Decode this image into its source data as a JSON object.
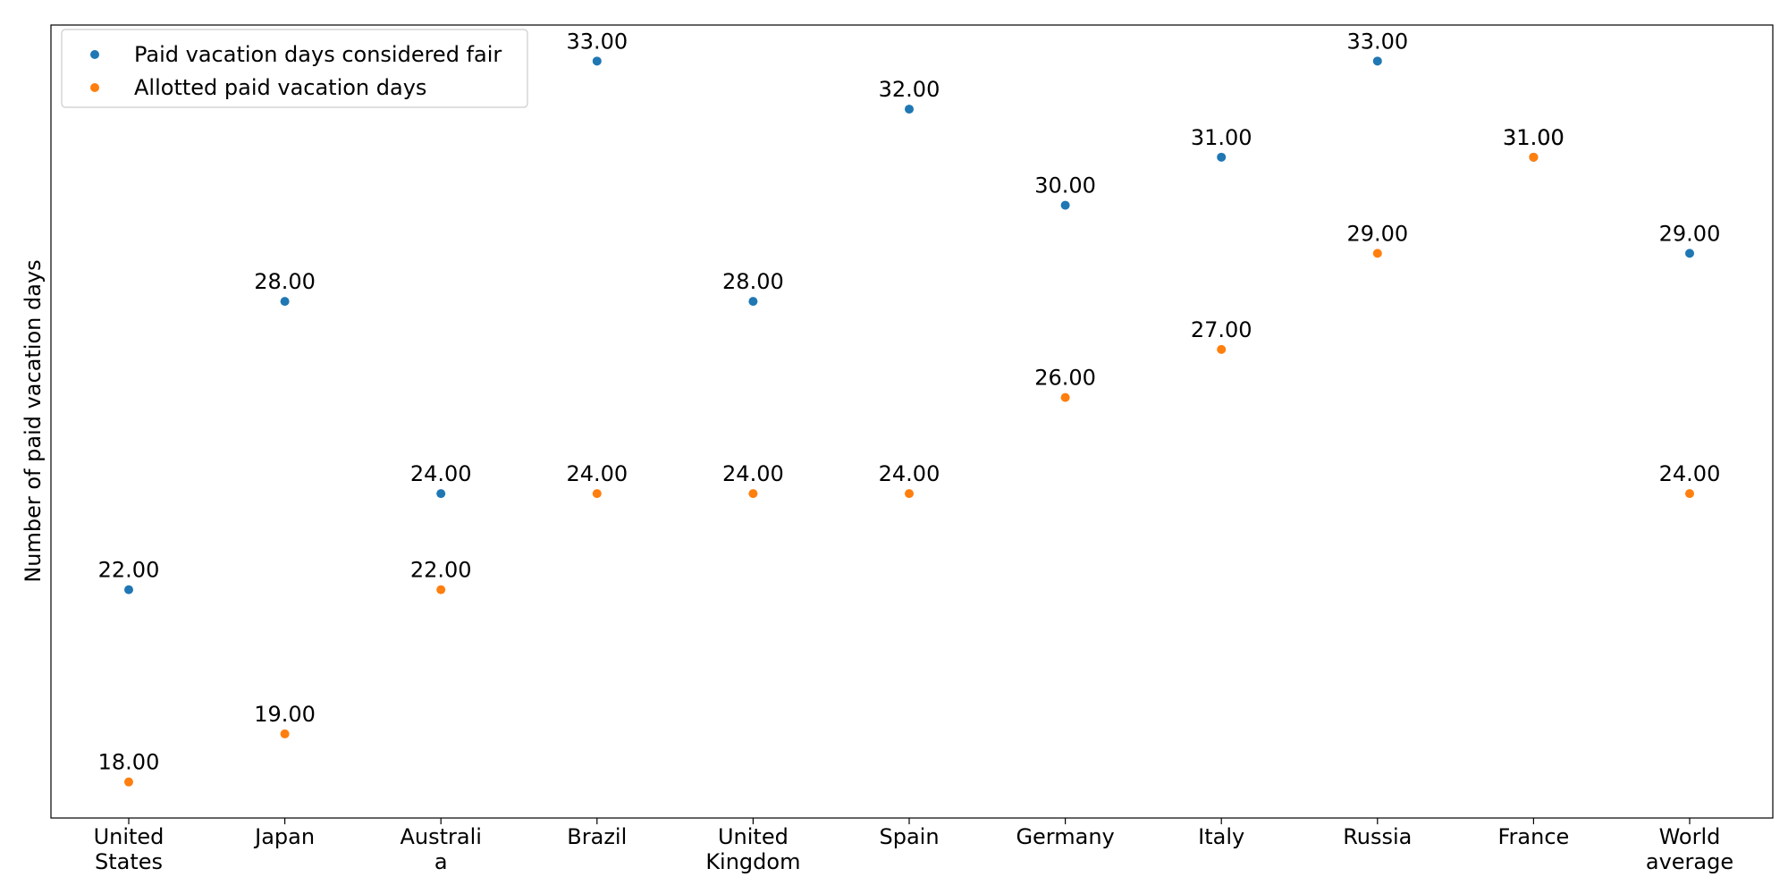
{
  "chart_data": {
    "type": "scatter",
    "categories": [
      [
        "United",
        "States"
      ],
      [
        "Japan"
      ],
      [
        "Australi",
        "a"
      ],
      [
        "Brazil"
      ],
      [
        "United",
        "Kingdom"
      ],
      [
        "Spain"
      ],
      [
        "Germany"
      ],
      [
        "Italy"
      ],
      [
        "Russia"
      ],
      [
        "France"
      ],
      [
        "World",
        "average"
      ]
    ],
    "series": [
      {
        "name": "Paid vacation days considered fair",
        "color": "#1f77b4",
        "values": [
          22,
          28,
          24,
          33,
          28,
          32,
          30,
          31,
          33,
          31,
          29
        ],
        "labels": [
          "22.00",
          "28.00",
          "24.00",
          "33.00",
          "28.00",
          "32.00",
          "30.00",
          "31.00",
          "33.00",
          "31.00",
          "29.00"
        ]
      },
      {
        "name": "Allotted paid vacation days",
        "color": "#ff7f0e",
        "values": [
          18,
          19,
          22,
          24,
          24,
          24,
          26,
          27,
          29,
          31,
          24
        ],
        "labels": [
          "18.00",
          "19.00",
          "22.00",
          "24.00",
          "24.00",
          "24.00",
          "26.00",
          "27.00",
          "29.00",
          "31.00",
          "24.00"
        ]
      }
    ],
    "xlabel": "",
    "ylabel": "Number of paid vacation days",
    "ylim": [
      17.25,
      33.75
    ],
    "y_ticks_visible": false,
    "grid": false,
    "legend_position": "top-left"
  }
}
